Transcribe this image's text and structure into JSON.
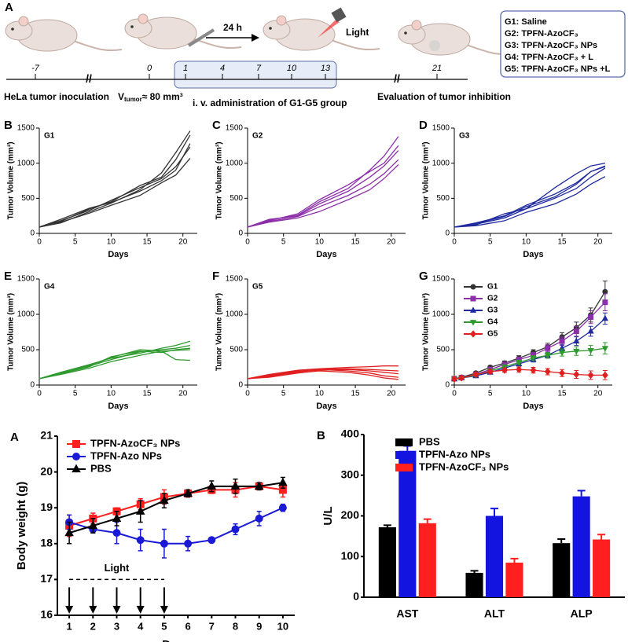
{
  "schematic": {
    "panel": "A",
    "days": [
      "-7",
      "0",
      "1",
      "4",
      "7",
      "10",
      "13",
      "21"
    ],
    "interval": "24 h",
    "light": "Light",
    "inoculation": "HeLa tumor inoculation",
    "volume": {
      "symbol": "V",
      "subscript": "tumor",
      "rest": "≈ 80 mm³"
    },
    "administration": "i. v. administration of G1-G5 group",
    "evaluation": "Evaluation of tumor inhibition",
    "groups": [
      "G1: Saline",
      "G2: TPFN-AzoCF₃",
      "G3: TPFN-AzoCF₃ NPs",
      "G4: TPFN-AzoCF₃ + L",
      "G5: TPFN-AzoCF₃ NPs +L"
    ]
  },
  "chart_data": [
    {
      "type": "line",
      "panel": "B",
      "title": "G1",
      "xlabel": "Days",
      "ylabel": "Tumor Volume (mm³)",
      "x": [
        0,
        3,
        7,
        10,
        14,
        17,
        19,
        21
      ],
      "xlim": [
        0,
        22
      ],
      "xticks": [
        0,
        5,
        10,
        15,
        20
      ],
      "ylim": [
        0,
        1500
      ],
      "yticks": [
        0,
        500,
        1000,
        1500
      ],
      "color": "#333333",
      "series": [
        {
          "values": [
            90,
            150,
            310,
            430,
            620,
            860,
            1150,
            1460
          ]
        },
        {
          "values": [
            90,
            170,
            350,
            450,
            680,
            800,
            1050,
            1400
          ]
        },
        {
          "values": [
            90,
            200,
            360,
            440,
            600,
            750,
            900,
            1280
          ]
        },
        {
          "values": [
            90,
            180,
            330,
            470,
            650,
            780,
            950,
            1230
          ]
        },
        {
          "values": [
            90,
            160,
            290,
            400,
            540,
            720,
            830,
            1070
          ]
        }
      ]
    },
    {
      "type": "line",
      "panel": "C",
      "title": "G2",
      "xlabel": "Days",
      "ylabel": "Tumor Volume (mm³)",
      "x": [
        0,
        3,
        7,
        10,
        14,
        17,
        19,
        21
      ],
      "xlim": [
        0,
        22
      ],
      "xticks": [
        0,
        5,
        10,
        15,
        20
      ],
      "ylim": [
        0,
        1500
      ],
      "yticks": [
        0,
        500,
        1000,
        1500
      ],
      "color": "#8b2ea8",
      "series": [
        {
          "values": [
            90,
            190,
            260,
            450,
            640,
            900,
            1100,
            1380
          ]
        },
        {
          "values": [
            90,
            180,
            280,
            480,
            690,
            880,
            1000,
            1250
          ]
        },
        {
          "values": [
            90,
            200,
            250,
            420,
            600,
            800,
            960,
            1180
          ]
        },
        {
          "values": [
            90,
            170,
            240,
            380,
            540,
            700,
            850,
            1050
          ]
        },
        {
          "values": [
            90,
            160,
            220,
            310,
            480,
            620,
            780,
            980
          ]
        }
      ]
    },
    {
      "type": "line",
      "panel": "D",
      "title": "G3",
      "xlabel": "Days",
      "ylabel": "Tumor Volume (mm³)",
      "x": [
        0,
        3,
        7,
        10,
        14,
        17,
        19,
        21
      ],
      "xlim": [
        0,
        22
      ],
      "xticks": [
        0,
        5,
        10,
        15,
        20
      ],
      "ylim": [
        0,
        1500
      ],
      "yticks": [
        0,
        500,
        1000,
        1500
      ],
      "color": "#1f2a9e",
      "series": [
        {
          "values": [
            90,
            120,
            280,
            350,
            650,
            850,
            960,
            1000
          ]
        },
        {
          "values": [
            90,
            150,
            250,
            400,
            560,
            720,
            880,
            960
          ]
        },
        {
          "values": [
            90,
            130,
            220,
            350,
            500,
            640,
            800,
            930
          ]
        },
        {
          "values": [
            90,
            110,
            180,
            300,
            420,
            560,
            700,
            810
          ]
        },
        {
          "values": [
            90,
            140,
            240,
            380,
            520,
            700,
            880,
            950
          ]
        }
      ]
    },
    {
      "type": "line",
      "panel": "E",
      "title": "G4",
      "xlabel": "Days",
      "ylabel": "Tumor Volume (mm³)",
      "x": [
        0,
        3,
        7,
        10,
        14,
        17,
        19,
        21
      ],
      "xlim": [
        0,
        22
      ],
      "xticks": [
        0,
        5,
        10,
        15,
        20
      ],
      "ylim": [
        0,
        1500
      ],
      "yticks": [
        0,
        500,
        1000,
        1500
      ],
      "color": "#2e9a2e",
      "series": [
        {
          "values": [
            90,
            180,
            290,
            380,
            450,
            520,
            560,
            620
          ]
        },
        {
          "values": [
            90,
            170,
            270,
            360,
            470,
            500,
            520,
            560
          ]
        },
        {
          "values": [
            90,
            160,
            260,
            400,
            480,
            460,
            500,
            520
          ]
        },
        {
          "values": [
            90,
            150,
            240,
            330,
            420,
            480,
            490,
            500
          ]
        },
        {
          "values": [
            90,
            160,
            280,
            390,
            500,
            480,
            360,
            350
          ]
        }
      ]
    },
    {
      "type": "line",
      "panel": "F",
      "title": "G5",
      "xlabel": "Days",
      "ylabel": "Tumor Volume (mm³)",
      "x": [
        0,
        3,
        7,
        10,
        14,
        17,
        19,
        21
      ],
      "xlim": [
        0,
        22
      ],
      "xticks": [
        0,
        5,
        10,
        15,
        20
      ],
      "ylim": [
        0,
        1500
      ],
      "yticks": [
        0,
        500,
        1000,
        1500
      ],
      "color": "#e02020",
      "series": [
        {
          "values": [
            90,
            150,
            210,
            230,
            250,
            260,
            270,
            270
          ]
        },
        {
          "values": [
            90,
            140,
            200,
            220,
            230,
            220,
            210,
            200
          ]
        },
        {
          "values": [
            90,
            130,
            190,
            210,
            220,
            200,
            180,
            160
          ]
        },
        {
          "values": [
            90,
            120,
            180,
            220,
            200,
            170,
            130,
            110
          ]
        },
        {
          "values": [
            90,
            110,
            170,
            200,
            180,
            140,
            100,
            80
          ]
        }
      ]
    },
    {
      "type": "line",
      "panel": "G",
      "xlabel": "Days",
      "ylabel": "Tumor Volume (mm³)",
      "x": [
        0,
        1,
        3,
        5,
        7,
        9,
        11,
        13,
        15,
        17,
        19,
        21
      ],
      "xlim": [
        0,
        22
      ],
      "xticks": [
        0,
        5,
        10,
        15,
        20
      ],
      "ylim": [
        0,
        1500
      ],
      "yticks": [
        0,
        500,
        1000,
        1500
      ],
      "legend": "upper left",
      "series": [
        {
          "name": "G1",
          "color": "#333333",
          "marker": "circle",
          "values": [
            90,
            110,
            170,
            250,
            310,
            380,
            460,
            540,
            680,
            810,
            990,
            1320
          ],
          "errors": [
            10,
            15,
            20,
            25,
            30,
            35,
            40,
            50,
            60,
            80,
            100,
            150
          ]
        },
        {
          "name": "G2",
          "color": "#8b2ea8",
          "marker": "square",
          "values": [
            90,
            105,
            150,
            220,
            290,
            360,
            420,
            520,
            620,
            760,
            960,
            1170
          ],
          "errors": [
            10,
            15,
            20,
            25,
            30,
            35,
            40,
            50,
            60,
            70,
            90,
            120
          ]
        },
        {
          "name": "G3",
          "color": "#1f2a9e",
          "marker": "triangle-up",
          "values": [
            85,
            100,
            130,
            180,
            240,
            300,
            360,
            420,
            520,
            620,
            760,
            940
          ],
          "errors": [
            10,
            12,
            15,
            20,
            25,
            30,
            35,
            40,
            50,
            60,
            70,
            80
          ]
        },
        {
          "name": "G4",
          "color": "#2e9a2e",
          "marker": "triangle-down",
          "values": [
            85,
            100,
            140,
            200,
            260,
            320,
            380,
            420,
            460,
            480,
            490,
            520
          ],
          "errors": [
            10,
            12,
            15,
            20,
            25,
            30,
            35,
            40,
            50,
            60,
            70,
            80
          ]
        },
        {
          "name": "G5",
          "color": "#e02020",
          "marker": "diamond",
          "values": [
            85,
            100,
            150,
            190,
            210,
            220,
            210,
            190,
            170,
            150,
            140,
            140
          ],
          "errors": [
            10,
            15,
            20,
            25,
            30,
            35,
            40,
            45,
            50,
            55,
            60,
            65
          ]
        }
      ]
    },
    {
      "type": "line",
      "panel": "A",
      "xlabel": "Days",
      "ylabel": "Body weight (g)",
      "x": [
        1,
        2,
        3,
        4,
        5,
        6,
        7,
        8,
        9,
        10
      ],
      "xlim": [
        0.5,
        10.5
      ],
      "xticks": [
        1,
        2,
        3,
        4,
        5,
        6,
        7,
        8,
        9,
        10
      ],
      "ylim": [
        16,
        21
      ],
      "yticks": [
        16,
        17,
        18,
        19,
        20,
        21
      ],
      "legend": "upper left",
      "annotation": {
        "text": "Light",
        "days": [
          1,
          2,
          3,
          4,
          5
        ],
        "level": 17
      },
      "series": [
        {
          "name": "TPFN-AzoCF₃ NPs",
          "color": "#ff1f1f",
          "marker": "square",
          "values": [
            18.5,
            18.7,
            18.9,
            19.1,
            19.3,
            19.4,
            19.5,
            19.5,
            19.6,
            19.5
          ],
          "errors": [
            0.3,
            0.15,
            0.1,
            0.15,
            0.2,
            0.1,
            0.1,
            0.2,
            0.1,
            0.2
          ]
        },
        {
          "name": "TPFN-Azo NPs",
          "color": "#1a1ad6",
          "marker": "circle",
          "values": [
            18.6,
            18.4,
            18.3,
            18.1,
            18.0,
            18.0,
            18.1,
            18.4,
            18.7,
            19.0
          ],
          "errors": [
            0.2,
            0.1,
            0.3,
            0.3,
            0.4,
            0.2,
            0.05,
            0.15,
            0.2,
            0.1
          ]
        },
        {
          "name": "PBS",
          "color": "#000000",
          "marker": "triangle-up",
          "values": [
            18.3,
            18.5,
            18.7,
            18.9,
            19.2,
            19.4,
            19.6,
            19.6,
            19.6,
            19.7
          ],
          "errors": [
            0.3,
            0.2,
            0.2,
            0.3,
            0.2,
            0.1,
            0.15,
            0.2,
            0.1,
            0.15
          ]
        }
      ]
    },
    {
      "type": "bar",
      "panel": "B",
      "ylabel": "U/L",
      "categories": [
        "AST",
        "ALT",
        "ALP"
      ],
      "ylim": [
        0,
        400
      ],
      "yticks": [
        0,
        100,
        200,
        300,
        400
      ],
      "legend": "upper left",
      "series": [
        {
          "name": "PBS",
          "color": "#000000",
          "values": [
            172,
            60,
            133
          ],
          "errors": [
            5,
            5,
            10
          ]
        },
        {
          "name": "TPFN-Azo NPs",
          "color": "#1414e0",
          "values": [
            360,
            200,
            248
          ],
          "errors": [
            12,
            18,
            14
          ]
        },
        {
          "name": "TPFN-AzoCF₃ NPs",
          "color": "#ff1f1f",
          "values": [
            182,
            85,
            142
          ],
          "errors": [
            10,
            10,
            12
          ]
        }
      ]
    }
  ]
}
